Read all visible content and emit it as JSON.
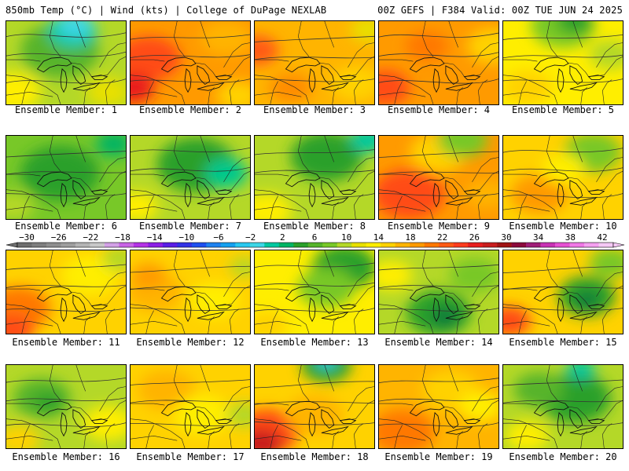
{
  "header": {
    "left": "850mb Temp (°C) | Wind (kts) | College of DuPage NEXLAB",
    "right": "00Z GEFS | F384 Valid: 00Z TUE JUN 24 2025"
  },
  "panels": [
    {
      "label": "Ensemble Member: 1",
      "base": "#b4d828",
      "blobs": [
        [
          "#56b42a",
          0.45,
          0.35,
          0.55
        ],
        [
          "#00c8a0",
          0.55,
          0.12,
          0.35
        ],
        [
          "#3cd6e6",
          0.58,
          0.05,
          0.25
        ],
        [
          "#ffee00",
          0.05,
          0.85,
          0.4
        ],
        [
          "#e8e000",
          0.85,
          0.85,
          0.3
        ]
      ]
    },
    {
      "label": "Ensemble Member: 2",
      "base": "#ff9a00",
      "blobs": [
        [
          "#ff4c18",
          0.15,
          0.45,
          0.45
        ],
        [
          "#e81e1e",
          0.02,
          0.8,
          0.3
        ],
        [
          "#ffb400",
          0.8,
          0.2,
          0.35
        ],
        [
          "#ffd200",
          0.9,
          0.9,
          0.3
        ]
      ]
    },
    {
      "label": "Ensemble Member: 3",
      "base": "#ffb400",
      "blobs": [
        [
          "#ff5a14",
          0.02,
          0.35,
          0.3
        ],
        [
          "#ffd200",
          0.85,
          0.75,
          0.35
        ],
        [
          "#e8e000",
          0.95,
          0.1,
          0.25
        ],
        [
          "#ff8c00",
          0.3,
          0.8,
          0.3
        ]
      ]
    },
    {
      "label": "Ensemble Member: 4",
      "base": "#ff9a00",
      "blobs": [
        [
          "#ff4c18",
          0.05,
          0.8,
          0.35
        ],
        [
          "#ffd200",
          0.95,
          0.3,
          0.35
        ],
        [
          "#ff7800",
          0.4,
          0.3,
          0.3
        ]
      ]
    },
    {
      "label": "Ensemble Member: 5",
      "base": "#ffee00",
      "blobs": [
        [
          "#78c828",
          0.5,
          0.05,
          0.45
        ],
        [
          "#2aa02a",
          0.6,
          0.0,
          0.25
        ],
        [
          "#ffd200",
          0.2,
          0.8,
          0.35
        ],
        [
          "#b4d828",
          0.9,
          0.4,
          0.3
        ]
      ]
    },
    {
      "label": "Ensemble Member: 6",
      "base": "#78c828",
      "blobs": [
        [
          "#2aa02a",
          0.45,
          0.45,
          0.55
        ],
        [
          "#00b464",
          0.9,
          0.1,
          0.25
        ],
        [
          "#b4d828",
          0.05,
          0.85,
          0.3
        ]
      ]
    },
    {
      "label": "Ensemble Member: 7",
      "base": "#b4d828",
      "blobs": [
        [
          "#2aa02a",
          0.55,
          0.35,
          0.55
        ],
        [
          "#00c88c",
          0.8,
          0.45,
          0.3
        ],
        [
          "#ffee00",
          0.05,
          0.85,
          0.3
        ]
      ]
    },
    {
      "label": "Ensemble Member: 8",
      "base": "#b4d828",
      "blobs": [
        [
          "#2aa02a",
          0.6,
          0.25,
          0.5
        ],
        [
          "#00c8a0",
          0.95,
          0.05,
          0.25
        ],
        [
          "#ffee00",
          0.1,
          0.9,
          0.35
        ]
      ]
    },
    {
      "label": "Ensemble Member: 9",
      "base": "#ff9a00",
      "blobs": [
        [
          "#ff4c18",
          0.25,
          0.7,
          0.5
        ],
        [
          "#ffd200",
          0.5,
          0.2,
          0.4
        ],
        [
          "#78c828",
          0.7,
          0.05,
          0.35
        ],
        [
          "#ffb400",
          0.9,
          0.7,
          0.3
        ]
      ]
    },
    {
      "label": "Ensemble Member: 10",
      "base": "#ffd200",
      "blobs": [
        [
          "#78c828",
          0.75,
          0.2,
          0.4
        ],
        [
          "#ff9a00",
          0.3,
          0.7,
          0.4
        ],
        [
          "#ffee00",
          0.5,
          0.4,
          0.3
        ]
      ]
    },
    {
      "label": "Ensemble Member: 11",
      "base": "#ffd200",
      "blobs": [
        [
          "#ff7800",
          0.1,
          0.7,
          0.45
        ],
        [
          "#ff4c18",
          0.05,
          0.95,
          0.3
        ],
        [
          "#ffee00",
          0.7,
          0.3,
          0.4
        ],
        [
          "#b4d828",
          0.95,
          0.1,
          0.25
        ]
      ]
    },
    {
      "label": "Ensemble Member: 12",
      "base": "#ffd200",
      "blobs": [
        [
          "#ffb400",
          0.2,
          0.5,
          0.4
        ],
        [
          "#ff9a00",
          0.15,
          0.3,
          0.25
        ],
        [
          "#ffee00",
          0.7,
          0.6,
          0.35
        ],
        [
          "#b4d828",
          0.95,
          0.2,
          0.2
        ]
      ]
    },
    {
      "label": "Ensemble Member: 13",
      "base": "#ffee00",
      "blobs": [
        [
          "#2aa02a",
          0.75,
          0.2,
          0.45
        ],
        [
          "#78c828",
          0.6,
          0.45,
          0.4
        ],
        [
          "#ffd200",
          0.1,
          0.9,
          0.3
        ]
      ]
    },
    {
      "label": "Ensemble Member: 14",
      "base": "#b4d828",
      "blobs": [
        [
          "#2aa02a",
          0.5,
          0.75,
          0.45
        ],
        [
          "#0a7a3a",
          0.55,
          0.8,
          0.2
        ],
        [
          "#78c828",
          0.8,
          0.3,
          0.35
        ],
        [
          "#ffee00",
          0.1,
          0.3,
          0.3
        ]
      ]
    },
    {
      "label": "Ensemble Member: 15",
      "base": "#ffd200",
      "blobs": [
        [
          "#2aa02a",
          0.7,
          0.55,
          0.4
        ],
        [
          "#0a7a3a",
          0.7,
          0.6,
          0.18
        ],
        [
          "#ff4c18",
          0.05,
          0.85,
          0.3
        ],
        [
          "#78c828",
          0.9,
          0.15,
          0.3
        ]
      ]
    },
    {
      "label": "Ensemble Member: 16",
      "base": "#b4d828",
      "blobs": [
        [
          "#56b42a",
          0.3,
          0.4,
          0.4
        ],
        [
          "#2aa02a",
          0.35,
          0.45,
          0.2
        ],
        [
          "#ffee00",
          0.85,
          0.7,
          0.35
        ],
        [
          "#ffd200",
          0.1,
          0.9,
          0.3
        ]
      ]
    },
    {
      "label": "Ensemble Member: 17",
      "base": "#ffd200",
      "blobs": [
        [
          "#ffb400",
          0.3,
          0.3,
          0.4
        ],
        [
          "#ffee00",
          0.6,
          0.6,
          0.4
        ],
        [
          "#b4d828",
          0.95,
          0.6,
          0.25
        ]
      ]
    },
    {
      "label": "Ensemble Member: 18",
      "base": "#ffd200",
      "blobs": [
        [
          "#ff4c18",
          0.1,
          0.8,
          0.45
        ],
        [
          "#c81e1e",
          0.05,
          0.95,
          0.3
        ],
        [
          "#ffb400",
          0.5,
          0.6,
          0.4
        ],
        [
          "#2aa02a",
          0.6,
          0.0,
          0.35
        ],
        [
          "#3cd6e6",
          0.6,
          -0.05,
          0.15
        ]
      ]
    },
    {
      "label": "Ensemble Member: 19",
      "base": "#ffb400",
      "blobs": [
        [
          "#ff7800",
          0.2,
          0.8,
          0.45
        ],
        [
          "#ffd200",
          0.6,
          0.3,
          0.4
        ],
        [
          "#ffee00",
          0.85,
          0.5,
          0.3
        ]
      ]
    },
    {
      "label": "Ensemble Member: 20",
      "base": "#b4d828",
      "blobs": [
        [
          "#2aa02a",
          0.6,
          0.4,
          0.5
        ],
        [
          "#56b42a",
          0.3,
          0.3,
          0.35
        ],
        [
          "#ffee00",
          0.2,
          0.85,
          0.3
        ],
        [
          "#00c8a0",
          0.65,
          0.05,
          0.2
        ]
      ]
    }
  ],
  "scale": {
    "labels": [
      "-30",
      "-26",
      "-22",
      "-18",
      "-14",
      "-10",
      "-6",
      "-2",
      "2",
      "6",
      "10",
      "14",
      "18",
      "22",
      "26",
      "30",
      "34",
      "38",
      "42"
    ],
    "colors": [
      "#6e6e6e",
      "#7e7e7e",
      "#8e8e8e",
      "#9e9e9e",
      "#b4b4b4",
      "#c8c8c8",
      "#d2a0e6",
      "#c864e6",
      "#b432e6",
      "#8c1ee6",
      "#5a1ee6",
      "#3232e6",
      "#1e50f0",
      "#1e82f0",
      "#14a0f0",
      "#28c8f0",
      "#3cd6e6",
      "#00c8a0",
      "#00b464",
      "#2aa02a",
      "#56b42a",
      "#78c828",
      "#b4d828",
      "#e8e000",
      "#ffee00",
      "#ffd200",
      "#ffb400",
      "#ff9a00",
      "#ff7800",
      "#ff5a14",
      "#ff3c1e",
      "#e81e1e",
      "#c81e1e",
      "#a01414",
      "#8c0a3c",
      "#a01e78",
      "#c832b4",
      "#e650d2",
      "#f078e6",
      "#f5a0f0",
      "#f5c8f5"
    ]
  }
}
